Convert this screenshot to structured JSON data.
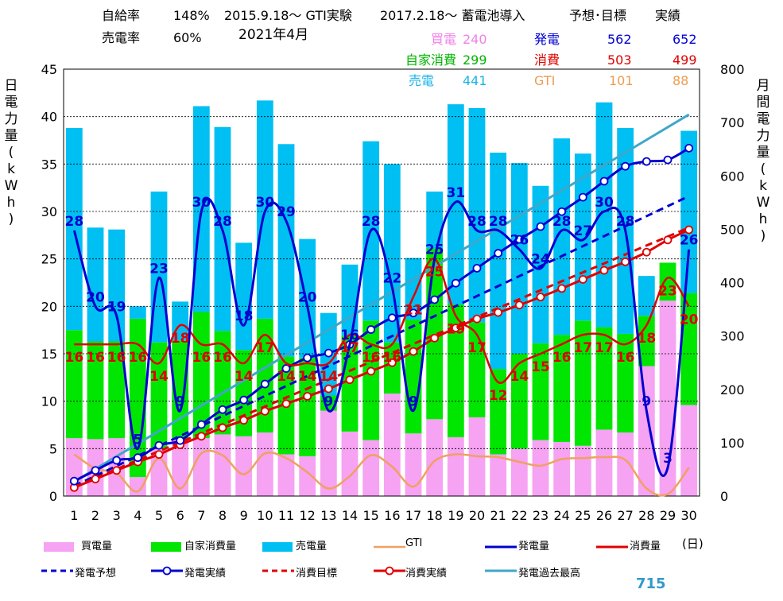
{
  "header": {
    "self_sufficiency_label": "自給率",
    "self_sufficiency_value": "148%",
    "experiment_text": "2015.9.18～ GTI実験",
    "battery_text": "2017.2.18～ 蓄電池導入",
    "forecast_target_label": "予想･目標",
    "actual_label": "実績",
    "sell_ratio_label": "売電率",
    "sell_ratio_value": "60%",
    "month_title": "2021年4月"
  },
  "summary": {
    "buy_label": "買電",
    "buy_value": "240",
    "self_label": "自家消費",
    "self_value": "299",
    "sell_label": "売電",
    "sell_value": "441",
    "gen_label": "発電",
    "gen_target": "562",
    "gen_actual": "652",
    "cons_label": "消費",
    "cons_target": "503",
    "cons_actual": "499",
    "gti_label": "GTI",
    "gti_target": "101",
    "gti_actual": "88"
  },
  "axes": {
    "left_label": "日電力量(kWh)",
    "right_label": "月間電力量(kWh)",
    "day_unit": "(日)"
  },
  "legend": {
    "buy": "買電量",
    "self": "自家消費量",
    "sell": "売電量",
    "gti": "GTI",
    "gen": "発電量",
    "cons": "消費量",
    "gen_forecast": "発電予想",
    "gen_actual": "発電実績",
    "cons_target": "消費目標",
    "cons_actual": "消費実績",
    "gen_record": "発電過去最高"
  },
  "bottom_number": "715",
  "colors": {
    "buy": "#f5a3f2",
    "self": "#00e600",
    "sell": "#00bff2",
    "gti": "#f0a060",
    "gen": "#0000d0",
    "cons": "#e00000",
    "record": "#3fa7c9"
  },
  "chart_data": {
    "type": "bar",
    "x": [
      1,
      2,
      3,
      4,
      5,
      6,
      7,
      8,
      9,
      10,
      11,
      12,
      13,
      14,
      15,
      16,
      17,
      18,
      19,
      20,
      21,
      22,
      23,
      24,
      25,
      26,
      27,
      28,
      29,
      30
    ],
    "xlabel": "(日)",
    "ylabel": "日電力量(kWh)",
    "ylim": [
      0,
      45
    ],
    "y2label": "月間電力量(kWh)",
    "y2lim": [
      0,
      800
    ],
    "yticks": [
      0,
      5,
      10,
      15,
      20,
      25,
      30,
      35,
      40,
      45
    ],
    "y2ticks": [
      0,
      100,
      200,
      300,
      400,
      500,
      600,
      700,
      800
    ],
    "grid": true,
    "series": [
      {
        "name": "買電量",
        "kind": "bar",
        "values": [
          6.1,
          6.0,
          6.1,
          2.0,
          5.0,
          6.0,
          6.1,
          6.5,
          6.3,
          6.7,
          4.4,
          4.2,
          9.0,
          6.8,
          5.9,
          10.8,
          6.6,
          8.1,
          6.2,
          8.3,
          4.4,
          5.0,
          5.9,
          5.7,
          5.3,
          7.0,
          6.7,
          13.7,
          20.6,
          9.6
        ]
      },
      {
        "name": "自家消費量",
        "kind": "bar",
        "values": [
          11.4,
          10.3,
          10.2,
          16.7,
          11.2,
          10.4,
          13.3,
          10.9,
          9.1,
          12.0,
          10.3,
          10.4,
          1.6,
          10.1,
          12.6,
          5.4,
          12.0,
          18.0,
          14.0,
          10.0,
          9.0,
          10.0,
          10.2,
          11.3,
          13.2,
          10.8,
          10.4,
          5.3,
          4.0,
          11.8
        ]
      },
      {
        "name": "売電量",
        "kind": "bar",
        "values": [
          21.3,
          12.0,
          11.8,
          1.3,
          15.9,
          4.1,
          21.7,
          21.5,
          11.3,
          23.0,
          22.4,
          12.5,
          8.7,
          7.5,
          18.9,
          18.8,
          6.5,
          6.0,
          21.1,
          22.6,
          22.8,
          20.1,
          16.6,
          20.7,
          17.6,
          23.7,
          21.7,
          4.2,
          0,
          17.1
        ]
      },
      {
        "name": "発電量",
        "kind": "line",
        "values": [
          28,
          20,
          19,
          5,
          23,
          9,
          30,
          28,
          18,
          30,
          29,
          20,
          9,
          16,
          28,
          22,
          9,
          25,
          31,
          28,
          28,
          26,
          24,
          28,
          27,
          30,
          28,
          9,
          3,
          26
        ]
      },
      {
        "name": "消費量",
        "kind": "line",
        "values": [
          16,
          16,
          16,
          16,
          14,
          18,
          16,
          16,
          14,
          17,
          14,
          14,
          14,
          17,
          16,
          16,
          21,
          25,
          19,
          17,
          12,
          14,
          15,
          16,
          17,
          17,
          16,
          18,
          23,
          20
        ]
      },
      {
        "name": "GTI",
        "kind": "line",
        "values": [
          4.4,
          2.9,
          2.4,
          0.5,
          4.0,
          0.8,
          4.5,
          4.3,
          2.3,
          4.5,
          4.0,
          2.5,
          0.8,
          2.1,
          4.3,
          3.1,
          1.0,
          3.7,
          4.4,
          4.2,
          4.1,
          3.6,
          3.2,
          3.9,
          4.0,
          4.1,
          3.8,
          0.8,
          0.2,
          3.0
        ]
      },
      {
        "name": "発電予想",
        "kind": "line",
        "axis": "right",
        "x": [
          1,
          30
        ],
        "values": [
          19,
          562
        ]
      },
      {
        "name": "発電実績",
        "kind": "line",
        "axis": "right",
        "values": [
          28,
          48,
          67,
          72,
          95,
          104,
          134,
          162,
          180,
          210,
          239,
          259,
          268,
          284,
          312,
          334,
          343,
          368,
          399,
          427,
          455,
          481,
          505,
          533,
          560,
          590,
          618,
          627,
          630,
          652
        ]
      },
      {
        "name": "消費目標",
        "kind": "line",
        "axis": "right",
        "x": [
          1,
          30
        ],
        "values": [
          17,
          503
        ]
      },
      {
        "name": "消費実績",
        "kind": "line",
        "axis": "right",
        "values": [
          16,
          32,
          48,
          64,
          78,
          96,
          112,
          128,
          142,
          159,
          173,
          187,
          201,
          218,
          234,
          250,
          271,
          296,
          315,
          332,
          344,
          358,
          373,
          389,
          406,
          423,
          439,
          457,
          480,
          499
        ]
      },
      {
        "name": "発電過去最高",
        "kind": "line",
        "axis": "right",
        "x": [
          1,
          30
        ],
        "values": [
          27,
          715
        ]
      }
    ],
    "bar_labels_gen": [
      28,
      20,
      19,
      5,
      23,
      9,
      30,
      28,
      18,
      30,
      29,
      20,
      9,
      16,
      28,
      22,
      9,
      25,
      31,
      28,
      28,
      26,
      24,
      28,
      27,
      30,
      28,
      9,
      3,
      26
    ],
    "bar_labels_cons": [
      16,
      16,
      16,
      16,
      14,
      18,
      16,
      16,
      14,
      17,
      14,
      14,
      14,
      17,
      16,
      16,
      21,
      25,
      19,
      17,
      12,
      14,
      15,
      16,
      17,
      17,
      16,
      18,
      23,
      20
    ]
  }
}
